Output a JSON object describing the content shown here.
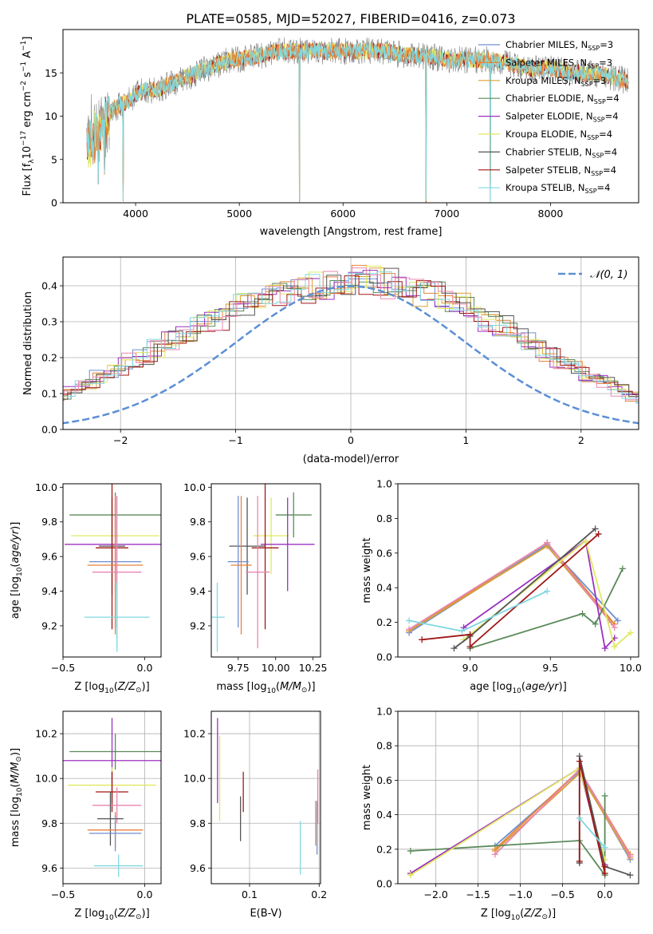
{
  "title": "PLATE=0585, MJD=52027, FIBERID=0416, z=0.073",
  "colors": {
    "Chabrier MILES": "#6f8fd0",
    "Salpeter MILES": "#e8823a",
    "Kroupa MILES": "#d9a033",
    "Chabrier ELODIE": "#5a8a5a",
    "Salpeter ELODIE": "#9b30c0",
    "Kroupa ELODIE": "#e0e860",
    "Chabrier STELIB": "#555555",
    "Salpeter STELIB": "#a01818",
    "Kroupa STELIB": "#80d8e0",
    "pink": "#e887b0",
    "gaussian": "#5b8fd6",
    "data": "#808080"
  },
  "chart_data": [
    {
      "id": "spectrum",
      "type": "line",
      "xlabel": "wavelength [Angstrom, rest frame]",
      "ylabel": "Flux [f_λ 10^-17 erg cm^-2 s^-1 A^-1]",
      "xlim": [
        3300,
        8850
      ],
      "ylim": [
        0,
        20
      ],
      "xticks": [
        4000,
        5000,
        6000,
        7000,
        8000
      ],
      "yticks": [
        0,
        5,
        10,
        15
      ],
      "legend_loc": "right",
      "legend": [
        {
          "label": "Chabrier MILES, N",
          "sub": "SSP",
          "suffix": "=3",
          "key": "Chabrier MILES"
        },
        {
          "label": "Salpeter MILES, N",
          "sub": "SSP",
          "suffix": "=3",
          "key": "Salpeter MILES"
        },
        {
          "label": "Kroupa MILES, N",
          "sub": "SSP",
          "suffix": "=3",
          "key": "Kroupa MILES"
        },
        {
          "label": "Chabrier ELODIE, N",
          "sub": "SSP",
          "suffix": "=4",
          "key": "Chabrier ELODIE"
        },
        {
          "label": "Salpeter ELODIE, N",
          "sub": "SSP",
          "suffix": "=4",
          "key": "Salpeter ELODIE"
        },
        {
          "label": "Kroupa ELODIE, N",
          "sub": "SSP",
          "suffix": "=4",
          "key": "Kroupa ELODIE"
        },
        {
          "label": "Chabrier STELIB, N",
          "sub": "SSP",
          "suffix": "=4",
          "key": "Chabrier STELIB"
        },
        {
          "label": "Salpeter STELIB, N",
          "sub": "SSP",
          "suffix": "=4",
          "key": "Salpeter STELIB"
        },
        {
          "label": "Kroupa STELIB, N",
          "sub": "SSP",
          "suffix": "=4",
          "key": "Kroupa STELIB"
        }
      ],
      "continuum": [
        [
          3530,
          7.0
        ],
        [
          3600,
          7.5
        ],
        [
          3700,
          9.5
        ],
        [
          3800,
          11.0
        ],
        [
          3900,
          11.5
        ],
        [
          4000,
          12.5
        ],
        [
          4100,
          13.0
        ],
        [
          4200,
          13.0
        ],
        [
          4300,
          13.5
        ],
        [
          4400,
          14.0
        ],
        [
          4500,
          14.5
        ],
        [
          4600,
          15.0
        ],
        [
          4700,
          15.5
        ],
        [
          4800,
          16.0
        ],
        [
          4900,
          16.5
        ],
        [
          5000,
          16.5
        ],
        [
          5200,
          17.0
        ],
        [
          5400,
          17.5
        ],
        [
          5600,
          17.5
        ],
        [
          5800,
          17.5
        ],
        [
          6000,
          17.5
        ],
        [
          6200,
          17.5
        ],
        [
          6400,
          17.5
        ],
        [
          6600,
          17.0
        ],
        [
          6800,
          17.0
        ],
        [
          7000,
          16.5
        ],
        [
          7200,
          16.5
        ],
        [
          7400,
          16.5
        ],
        [
          7600,
          16.0
        ],
        [
          7800,
          15.5
        ],
        [
          8000,
          15.5
        ],
        [
          8200,
          15.0
        ],
        [
          8400,
          15.0
        ],
        [
          8600,
          14.5
        ],
        [
          8750,
          14.0
        ]
      ],
      "dips": [
        [
          3880,
          0
        ],
        [
          5580,
          0
        ],
        [
          6800,
          0
        ],
        [
          7420,
          0
        ],
        [
          3640,
          2.0
        ],
        [
          3700,
          3.0
        ]
      ]
    },
    {
      "id": "residual_hist",
      "type": "histogram",
      "xlabel": "(data-model)/error",
      "ylabel": "Normed distribution",
      "xlim": [
        -2.5,
        2.5
      ],
      "ylim": [
        0,
        0.48
      ],
      "xticks": [
        -2,
        -1,
        0,
        1,
        2
      ],
      "yticks": [
        0.0,
        0.1,
        0.2,
        0.3,
        0.4
      ],
      "legend": "𝒩(0, 1)",
      "bin_width": 0.125,
      "values": [
        0.018,
        0.02,
        0.028,
        0.035,
        0.045,
        0.055,
        0.06,
        0.075,
        0.09,
        0.11,
        0.125,
        0.145,
        0.16,
        0.185,
        0.205,
        0.23,
        0.25,
        0.27,
        0.29,
        0.31,
        0.33,
        0.35,
        0.36,
        0.38,
        0.385,
        0.39,
        0.4,
        0.41,
        0.4,
        0.41,
        0.415,
        0.405,
        0.395,
        0.38,
        0.375,
        0.355,
        0.34,
        0.32,
        0.3,
        0.285,
        0.26,
        0.24,
        0.215,
        0.19,
        0.17,
        0.15,
        0.13,
        0.11,
        0.09,
        0.075,
        0.06,
        0.05,
        0.04,
        0.03,
        0.025,
        0.02,
        0.018,
        0.015
      ]
    },
    {
      "id": "age_vs_Z",
      "type": "errorbar",
      "xlabel": "Z [log10(Z/Z⊙)]",
      "ylabel": "age [log10(age/yr)]",
      "xlim": [
        -0.5,
        0.1
      ],
      "ylim": [
        9.02,
        10.02
      ],
      "xticks": [
        -0.5,
        0.0
      ],
      "yticks": [
        9.2,
        9.4,
        9.6,
        9.8,
        10.0
      ],
      "points": [
        {
          "s": "Chabrier ELODIE",
          "x": -0.18,
          "xe": 0.28,
          "y": 9.84,
          "ye": 0.13
        },
        {
          "s": "Kroupa ELODIE",
          "x": -0.18,
          "xe": 0.27,
          "y": 9.72,
          "ye": 0.22
        },
        {
          "s": "Salpeter ELODIE",
          "x": -0.18,
          "xe": 0.31,
          "y": 9.67,
          "ye": 0.27
        },
        {
          "s": "Chabrier STELIB",
          "x": -0.2,
          "xe": 0.08,
          "y": 9.66,
          "ye": 0.28
        },
        {
          "s": "Salpeter STELIB",
          "x": -0.2,
          "xe": 0.1,
          "y": 9.65,
          "ye": 0.47
        },
        {
          "s": "Chabrier MILES",
          "x": -0.18,
          "xe": 0.16,
          "y": 9.57,
          "ye": 0.38
        },
        {
          "s": "Salpeter MILES",
          "x": -0.18,
          "xe": 0.17,
          "y": 9.55,
          "ye": 0.4
        },
        {
          "s": "pink",
          "x": -0.17,
          "xe": 0.15,
          "y": 9.51,
          "ye": 0.44
        },
        {
          "s": "Kroupa STELIB",
          "x": -0.17,
          "xe": 0.2,
          "y": 9.25,
          "ye": 0.2
        }
      ]
    },
    {
      "id": "age_vs_mass",
      "type": "errorbar",
      "xlabel": "mass [log10(M/M⊙)]",
      "ylabel": "",
      "xlim": [
        9.57,
        10.3
      ],
      "ylim": [
        9.02,
        10.02
      ],
      "xticks": [
        9.75,
        10.0,
        10.25
      ],
      "yticks": [
        9.2,
        9.4,
        9.6,
        9.8,
        10.0
      ],
      "points": [
        {
          "s": "Chabrier ELODIE",
          "x": 10.12,
          "xe": 0.12,
          "y": 9.84,
          "ye": 0.13
        },
        {
          "s": "Kroupa ELODIE",
          "x": 9.97,
          "xe": 0.12,
          "y": 9.72,
          "ye": 0.22
        },
        {
          "s": "Salpeter ELODIE",
          "x": 10.08,
          "xe": 0.18,
          "y": 9.67,
          "ye": 0.27
        },
        {
          "s": "Chabrier STELIB",
          "x": 9.81,
          "xe": 0.12,
          "y": 9.66,
          "ye": 0.28
        },
        {
          "s": "Salpeter STELIB",
          "x": 9.93,
          "xe": 0.09,
          "y": 9.65,
          "ye": 0.47
        },
        {
          "s": "Chabrier MILES",
          "x": 9.75,
          "xe": 0.07,
          "y": 9.57,
          "ye": 0.38
        },
        {
          "s": "Salpeter MILES",
          "x": 9.77,
          "xe": 0.07,
          "y": 9.55,
          "ye": 0.4
        },
        {
          "s": "pink",
          "x": 9.88,
          "xe": 0.08,
          "y": 9.51,
          "ye": 0.44
        },
        {
          "s": "Kroupa STELIB",
          "x": 9.61,
          "xe": 0.05,
          "y": 9.25,
          "ye": 0.2
        }
      ]
    },
    {
      "id": "weight_vs_age",
      "type": "line",
      "xlabel": "age [log10(age/yr)]",
      "ylabel": "mass weight",
      "xlim": [
        8.55,
        10.05
      ],
      "ylim": [
        0,
        1.0
      ],
      "xticks": [
        8.5,
        9.0,
        9.5,
        10.0
      ],
      "yticks": [
        0.0,
        0.2,
        0.4,
        0.6,
        0.8,
        1.0
      ],
      "series": [
        {
          "s": "Chabrier MILES",
          "x": [
            8.62,
            9.48,
            9.92
          ],
          "y": [
            0.14,
            0.65,
            0.21
          ]
        },
        {
          "s": "Salpeter MILES",
          "x": [
            8.62,
            9.48,
            9.9
          ],
          "y": [
            0.15,
            0.66,
            0.19
          ]
        },
        {
          "s": "Kroupa MILES",
          "x": [
            8.62,
            9.48,
            9.88
          ],
          "y": [
            0.15,
            0.64,
            0.2
          ]
        },
        {
          "s": "pink",
          "x": [
            8.62,
            9.48,
            9.9
          ],
          "y": [
            0.16,
            0.66,
            0.17
          ]
        },
        {
          "s": "Chabrier ELODIE",
          "x": [
            9.0,
            9.7,
            9.78,
            9.95
          ],
          "y": [
            0.05,
            0.25,
            0.19,
            0.51
          ]
        },
        {
          "s": "Salpeter ELODIE",
          "x": [
            8.96,
            9.72,
            9.84,
            9.9
          ],
          "y": [
            0.17,
            0.67,
            0.05,
            0.11
          ]
        },
        {
          "s": "Kroupa ELODIE",
          "x": [
            8.96,
            9.72,
            9.9,
            10.0
          ],
          "y": [
            0.1,
            0.67,
            0.06,
            0.14
          ]
        },
        {
          "s": "Chabrier STELIB",
          "x": [
            8.9,
            9.0,
            9.78
          ],
          "y": [
            0.05,
            0.12,
            0.74
          ]
        },
        {
          "s": "Salpeter STELIB",
          "x": [
            8.7,
            9.0,
            9.0,
            9.8
          ],
          "y": [
            0.1,
            0.13,
            0.06,
            0.71
          ]
        },
        {
          "s": "Kroupa STELIB",
          "x": [
            8.62,
            8.95,
            9.48
          ],
          "y": [
            0.21,
            0.15,
            0.38
          ]
        }
      ]
    },
    {
      "id": "mass_vs_Z",
      "type": "errorbar",
      "xlabel": "Z [log10(Z/Z⊙)]",
      "ylabel": "mass [log10(M/M⊙)]",
      "xlim": [
        -0.5,
        0.1
      ],
      "ylim": [
        9.53,
        10.3
      ],
      "xticks": [
        -0.5,
        0.0
      ],
      "yticks": [
        9.6,
        9.8,
        10.0,
        10.2
      ],
      "points": [
        {
          "s": "Chabrier ELODIE",
          "x": -0.18,
          "xe": 0.28,
          "y": 10.12,
          "ye": 0.08
        },
        {
          "s": "Salpeter ELODIE",
          "x": -0.2,
          "xe": 0.3,
          "y": 10.08,
          "ye": 0.19
        },
        {
          "s": "Kroupa ELODIE",
          "x": -0.2,
          "xe": 0.27,
          "y": 9.97,
          "ye": 0.08
        },
        {
          "s": "Salpeter STELIB",
          "x": -0.2,
          "xe": 0.1,
          "y": 9.94,
          "ye": 0.09
        },
        {
          "s": "pink",
          "x": -0.17,
          "xe": 0.15,
          "y": 9.88,
          "ye": 0.08
        },
        {
          "s": "Chabrier STELIB",
          "x": -0.21,
          "xe": 0.08,
          "y": 9.82,
          "ye": 0.12
        },
        {
          "s": "Salpeter MILES",
          "x": -0.18,
          "xe": 0.17,
          "y": 9.77,
          "ye": 0.08
        },
        {
          "s": "Chabrier MILES",
          "x": -0.18,
          "xe": 0.16,
          "y": 9.755,
          "ye": 0.08
        },
        {
          "s": "Kroupa STELIB",
          "x": -0.16,
          "xe": 0.15,
          "y": 9.61,
          "ye": 0.05
        }
      ]
    },
    {
      "id": "mass_vs_ebv",
      "type": "errorbar",
      "xlabel": "E(B-V)",
      "ylabel": "",
      "xlim": [
        0.045,
        0.202
      ],
      "ylim": [
        9.53,
        10.3
      ],
      "xticks": [
        0.1,
        0.2
      ],
      "yticks": [
        9.6,
        9.8,
        10.0,
        10.2
      ],
      "points": [
        {
          "s": "Salpeter ELODIE",
          "x": 0.054,
          "xe": 0,
          "y": 10.08,
          "ye": 0.19
        },
        {
          "s": "Kroupa ELODIE",
          "x": 0.057,
          "xe": 0,
          "y": 10.0,
          "ye": 0.19
        },
        {
          "s": "Chabrier STELIB",
          "x": 0.087,
          "xe": 0,
          "y": 9.82,
          "ye": 0.1
        },
        {
          "s": "Salpeter STELIB",
          "x": 0.091,
          "xe": 0,
          "y": 9.94,
          "ye": 0.09
        },
        {
          "s": "Kroupa STELIB",
          "x": 0.173,
          "xe": 0,
          "y": 9.69,
          "ye": 0.12
        },
        {
          "s": "Salpeter MILES",
          "x": 0.195,
          "xe": 0,
          "y": 9.8,
          "ye": 0.1
        },
        {
          "s": "Chabrier MILES",
          "x": 0.197,
          "xe": 0,
          "y": 9.78,
          "ye": 0.12
        },
        {
          "s": "pink",
          "x": 0.198,
          "xe": 0,
          "y": 9.92,
          "ye": 0.12
        }
      ]
    },
    {
      "id": "weight_vs_Z",
      "type": "line",
      "xlabel": "Z [log10(Z/Z⊙)]",
      "ylabel": "mass weight",
      "xlim": [
        -2.45,
        0.4
      ],
      "ylim": [
        0,
        1.0
      ],
      "xticks": [
        -2.0,
        -1.5,
        -1.0,
        -0.5,
        0.0
      ],
      "yticks": [
        0.0,
        0.2,
        0.4,
        0.6,
        0.8,
        1.0
      ],
      "series": [
        {
          "s": "Chabrier MILES",
          "x": [
            -1.3,
            -0.3,
            0.3
          ],
          "y": [
            0.22,
            0.65,
            0.14
          ]
        },
        {
          "s": "Salpeter MILES",
          "x": [
            -1.3,
            -0.3,
            0.3
          ],
          "y": [
            0.2,
            0.66,
            0.17
          ]
        },
        {
          "s": "Kroupa MILES",
          "x": [
            -1.3,
            -0.3,
            0.3
          ],
          "y": [
            0.19,
            0.64,
            0.15
          ]
        },
        {
          "s": "pink",
          "x": [
            -1.3,
            -0.3,
            0.3
          ],
          "y": [
            0.17,
            0.66,
            0.16
          ]
        },
        {
          "s": "Chabrier ELODIE",
          "x": [
            -2.3,
            -0.3,
            0.0,
            0.0
          ],
          "y": [
            0.19,
            0.25,
            0.05,
            0.51
          ]
        },
        {
          "s": "Salpeter ELODIE",
          "x": [
            -2.3,
            -0.3,
            0.0
          ],
          "y": [
            0.06,
            0.67,
            0.11
          ]
        },
        {
          "s": "Kroupa ELODIE",
          "x": [
            -2.3,
            -0.3,
            0.0
          ],
          "y": [
            0.05,
            0.67,
            0.14
          ]
        },
        {
          "s": "Chabrier STELIB",
          "x": [
            -0.3,
            -0.3,
            0.0,
            0.3
          ],
          "y": [
            0.12,
            0.74,
            0.1,
            0.05
          ]
        },
        {
          "s": "Salpeter STELIB",
          "x": [
            -0.3,
            -0.3,
            0.0,
            0.0
          ],
          "y": [
            0.13,
            0.71,
            0.06,
            0.1
          ]
        },
        {
          "s": "Kroupa STELIB",
          "x": [
            -0.3,
            0.0
          ],
          "y": [
            0.38,
            0.21
          ]
        }
      ]
    }
  ]
}
